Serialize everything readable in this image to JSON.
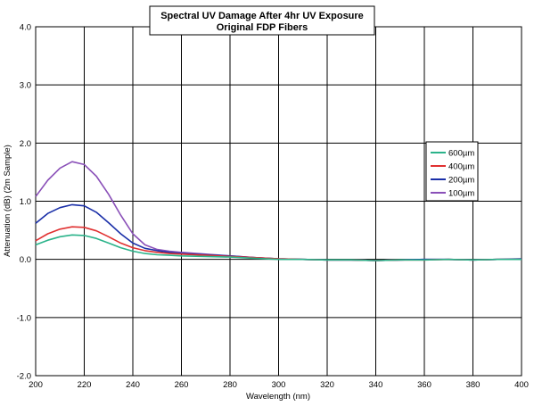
{
  "chart_data": {
    "type": "line",
    "title": "Spectral UV Damage After 4hr UV Exposure",
    "subtitle": "Original FDP Fibers",
    "xlabel": "Wavelength (nm)",
    "ylabel": "Attenuation (dB) (2m Sample)",
    "xlim": [
      200,
      400
    ],
    "ylim": [
      -2.0,
      4.0
    ],
    "xticks": [
      "200",
      "220",
      "240",
      "260",
      "280",
      "300",
      "320",
      "340",
      "360",
      "380",
      "400"
    ],
    "yticks": [
      "-2.0",
      "-1.0",
      "0.0",
      "1.0",
      "2.0",
      "3.0",
      "4.0"
    ],
    "grid": true,
    "legend_position": "right",
    "x": [
      200,
      205,
      210,
      215,
      220,
      225,
      230,
      235,
      240,
      245,
      250,
      255,
      260,
      270,
      280,
      290,
      300,
      310,
      320,
      330,
      340,
      350,
      360,
      370,
      380,
      390,
      400
    ],
    "series": [
      {
        "name": "600µm",
        "color": "#2bb38a",
        "values": [
          0.25,
          0.33,
          0.39,
          0.42,
          0.41,
          0.36,
          0.28,
          0.2,
          0.14,
          0.1,
          0.08,
          0.07,
          0.06,
          0.05,
          0.04,
          0.02,
          0.0,
          0.0,
          -0.01,
          -0.01,
          -0.02,
          -0.01,
          -0.01,
          0.0,
          -0.01,
          0.0,
          0.0
        ]
      },
      {
        "name": "400µm",
        "color": "#e03030",
        "values": [
          0.32,
          0.44,
          0.52,
          0.56,
          0.55,
          0.49,
          0.39,
          0.28,
          0.2,
          0.15,
          0.12,
          0.1,
          0.09,
          0.07,
          0.05,
          0.03,
          0.01,
          0.0,
          -0.01,
          -0.01,
          -0.02,
          -0.01,
          -0.01,
          0.0,
          -0.01,
          0.0,
          0.0
        ]
      },
      {
        "name": "200µm",
        "color": "#1a2fa8",
        "values": [
          0.62,
          0.79,
          0.89,
          0.94,
          0.92,
          0.81,
          0.63,
          0.44,
          0.28,
          0.19,
          0.15,
          0.12,
          0.1,
          0.08,
          0.06,
          0.03,
          0.01,
          0.0,
          -0.01,
          -0.01,
          -0.02,
          -0.01,
          0.0,
          0.0,
          -0.01,
          0.0,
          0.01
        ]
      },
      {
        "name": "100µm",
        "color": "#8a50b8",
        "values": [
          1.08,
          1.36,
          1.57,
          1.68,
          1.63,
          1.43,
          1.12,
          0.76,
          0.44,
          0.25,
          0.17,
          0.14,
          0.12,
          0.09,
          0.06,
          0.03,
          0.01,
          0.0,
          -0.01,
          -0.01,
          -0.02,
          -0.01,
          0.0,
          0.0,
          -0.01,
          0.0,
          0.0
        ]
      }
    ]
  }
}
